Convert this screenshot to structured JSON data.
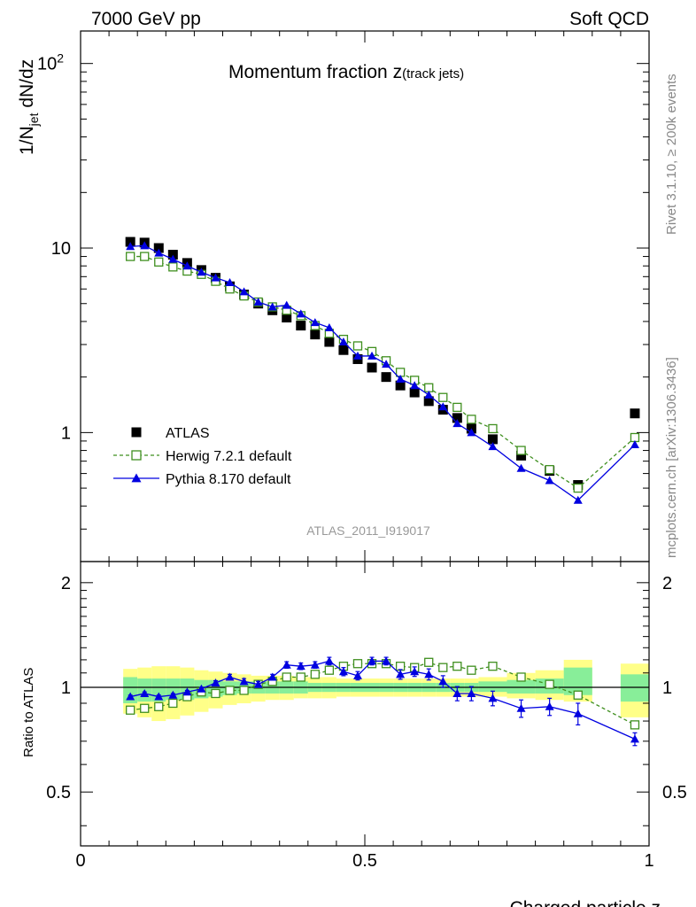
{
  "header": {
    "left": "7000 GeV pp",
    "right": "Soft QCD"
  },
  "side_labels": {
    "top": "Rivet 3.1.10, ≥ 200k events",
    "bottom": "mcplots.cern.ch [arXiv:1306.3436]"
  },
  "chart_data": {
    "type": "scatter",
    "title_main": "Momentum fraction ",
    "title_var": "z",
    "title_sub": "(track jets)",
    "ylabel_pre": "1/N",
    "ylabel_sub": "jet",
    "ylabel_post": " dN/dz",
    "xlabel": "Charged particle z",
    "ratio_ylabel": "Ratio to ATLAS",
    "analysis_id": "ATLAS_2011_I919017",
    "xlim": [
      0,
      1
    ],
    "ylim": [
      0.2,
      150
    ],
    "ratio_ylim": [
      0.35,
      2.3
    ],
    "x_ticks": [
      {
        "v": 0,
        "l": "0"
      },
      {
        "v": 0.5,
        "l": "0.5"
      },
      {
        "v": 1,
        "l": "1"
      }
    ],
    "y_ticks": [
      {
        "v": 1,
        "l": "1"
      },
      {
        "v": 10,
        "l": "10"
      },
      {
        "v": 100,
        "l": "10",
        "sup": "2"
      }
    ],
    "ratio_ticks": [
      {
        "v": 0.5,
        "l": "0.5"
      },
      {
        "v": 1,
        "l": "1"
      },
      {
        "v": 2,
        "l": "2"
      }
    ],
    "x": [
      0.0875,
      0.1125,
      0.1375,
      0.1625,
      0.1875,
      0.2125,
      0.2375,
      0.2625,
      0.2875,
      0.3125,
      0.3375,
      0.3625,
      0.3875,
      0.4125,
      0.4375,
      0.4625,
      0.4875,
      0.5125,
      0.5375,
      0.5625,
      0.5875,
      0.6125,
      0.6375,
      0.6625,
      0.6875,
      0.725,
      0.775,
      0.825,
      0.875,
      0.975
    ],
    "legend": [
      {
        "name": "ATLAS",
        "marker": "square-filled",
        "color": "#000000"
      },
      {
        "name": "Herwig 7.2.1 default",
        "marker": "square-open",
        "color": "#3f8f1f",
        "dash": true
      },
      {
        "name": "Pythia 8.170 default",
        "marker": "triangle",
        "color": "#0000e0",
        "dash": false
      }
    ],
    "series": [
      {
        "name": "ATLAS",
        "values": [
          10.8,
          10.7,
          10.0,
          9.2,
          8.3,
          7.6,
          6.9,
          6.2,
          5.6,
          5.0,
          4.6,
          4.2,
          3.8,
          3.4,
          3.1,
          2.8,
          2.5,
          2.25,
          2.0,
          1.8,
          1.65,
          1.48,
          1.33,
          1.2,
          1.05,
          0.92,
          0.75,
          0.62,
          0.52,
          1.27
        ]
      },
      {
        "name": "Herwig 7.2.1 default",
        "values": [
          9.0,
          9.0,
          8.4,
          7.9,
          7.5,
          7.2,
          6.6,
          6.0,
          5.5,
          5.1,
          4.8,
          4.6,
          4.3,
          3.8,
          3.45,
          3.2,
          2.95,
          2.75,
          2.45,
          2.12,
          1.92,
          1.75,
          1.55,
          1.37,
          1.18,
          1.05,
          0.8,
          0.63,
          0.5,
          0.94
        ]
      },
      {
        "name": "Pythia 8.170 default",
        "values": [
          10.2,
          10.3,
          9.4,
          8.7,
          8.0,
          7.4,
          6.9,
          6.5,
          5.8,
          5.1,
          4.8,
          4.9,
          4.4,
          3.95,
          3.7,
          3.1,
          2.6,
          2.6,
          2.35,
          1.95,
          1.8,
          1.6,
          1.38,
          1.12,
          1.0,
          0.84,
          0.64,
          0.55,
          0.43,
          0.86
        ]
      }
    ],
    "ratio_series": [
      {
        "name": "Herwig 7.2.1 default",
        "values": [
          0.86,
          0.87,
          0.88,
          0.9,
          0.94,
          0.97,
          0.96,
          0.98,
          0.98,
          1.02,
          1.04,
          1.07,
          1.07,
          1.09,
          1.12,
          1.15,
          1.17,
          1.17,
          1.17,
          1.15,
          1.14,
          1.18,
          1.14,
          1.15,
          1.12,
          1.15,
          1.07,
          1.02,
          0.95,
          0.78
        ]
      },
      {
        "name": "Pythia 8.170 default",
        "values": [
          0.94,
          0.96,
          0.94,
          0.95,
          0.97,
          0.99,
          1.03,
          1.07,
          1.04,
          1.02,
          1.07,
          1.16,
          1.15,
          1.16,
          1.19,
          1.11,
          1.08,
          1.19,
          1.19,
          1.09,
          1.11,
          1.09,
          1.04,
          0.96,
          0.96,
          0.93,
          0.87,
          0.88,
          0.84,
          0.71
        ]
      }
    ],
    "ratio_errors": [
      0.01,
      0.01,
      0.01,
      0.01,
      0.01,
      0.01,
      0.015,
      0.02,
      0.02,
      0.02,
      0.02,
      0.025,
      0.025,
      0.025,
      0.03,
      0.03,
      0.03,
      0.03,
      0.03,
      0.035,
      0.035,
      0.04,
      0.04,
      0.045,
      0.045,
      0.045,
      0.05,
      0.05,
      0.06,
      0.03
    ],
    "bands": [
      {
        "x0": 0.075,
        "x1": 0.1,
        "g0": 0.9,
        "g1": 1.07,
        "y0": 0.84,
        "y1": 1.13
      },
      {
        "x0": 0.1,
        "x1": 0.125,
        "g0": 0.91,
        "g1": 1.06,
        "y0": 0.82,
        "y1": 1.14
      },
      {
        "x0": 0.125,
        "x1": 0.15,
        "g0": 0.91,
        "g1": 1.06,
        "y0": 0.8,
        "y1": 1.15
      },
      {
        "x0": 0.15,
        "x1": 0.175,
        "g0": 0.92,
        "g1": 1.06,
        "y0": 0.81,
        "y1": 1.15
      },
      {
        "x0": 0.175,
        "x1": 0.2,
        "g0": 0.92,
        "g1": 1.06,
        "y0": 0.83,
        "y1": 1.14
      },
      {
        "x0": 0.2,
        "x1": 0.225,
        "g0": 0.93,
        "g1": 1.05,
        "y0": 0.85,
        "y1": 1.12
      },
      {
        "x0": 0.225,
        "x1": 0.25,
        "g0": 0.94,
        "g1": 1.05,
        "y0": 0.87,
        "y1": 1.11
      },
      {
        "x0": 0.25,
        "x1": 0.275,
        "g0": 0.95,
        "g1": 1.04,
        "y0": 0.89,
        "y1": 1.1
      },
      {
        "x0": 0.275,
        "x1": 0.3,
        "g0": 0.96,
        "g1": 1.04,
        "y0": 0.9,
        "y1": 1.09
      },
      {
        "x0": 0.3,
        "x1": 0.325,
        "g0": 0.96,
        "g1": 1.04,
        "y0": 0.91,
        "y1": 1.08
      },
      {
        "x0": 0.325,
        "x1": 0.35,
        "g0": 0.96,
        "g1": 1.04,
        "y0": 0.92,
        "y1": 1.08
      },
      {
        "x0": 0.35,
        "x1": 0.375,
        "g0": 0.96,
        "g1": 1.04,
        "y0": 0.92,
        "y1": 1.08
      },
      {
        "x0": 0.375,
        "x1": 0.4,
        "g0": 0.96,
        "g1": 1.04,
        "y0": 0.93,
        "y1": 1.07
      },
      {
        "x0": 0.4,
        "x1": 0.425,
        "g0": 0.97,
        "g1": 1.03,
        "y0": 0.93,
        "y1": 1.07
      },
      {
        "x0": 0.425,
        "x1": 0.45,
        "g0": 0.97,
        "g1": 1.03,
        "y0": 0.93,
        "y1": 1.07
      },
      {
        "x0": 0.45,
        "x1": 0.475,
        "g0": 0.97,
        "g1": 1.03,
        "y0": 0.94,
        "y1": 1.06
      },
      {
        "x0": 0.475,
        "x1": 0.5,
        "g0": 0.97,
        "g1": 1.03,
        "y0": 0.94,
        "y1": 1.06
      },
      {
        "x0": 0.5,
        "x1": 0.525,
        "g0": 0.97,
        "g1": 1.03,
        "y0": 0.94,
        "y1": 1.06
      },
      {
        "x0": 0.525,
        "x1": 0.55,
        "g0": 0.97,
        "g1": 1.03,
        "y0": 0.94,
        "y1": 1.06
      },
      {
        "x0": 0.55,
        "x1": 0.575,
        "g0": 0.97,
        "g1": 1.03,
        "y0": 0.94,
        "y1": 1.06
      },
      {
        "x0": 0.575,
        "x1": 0.6,
        "g0": 0.97,
        "g1": 1.03,
        "y0": 0.94,
        "y1": 1.06
      },
      {
        "x0": 0.6,
        "x1": 0.625,
        "g0": 0.97,
        "g1": 1.03,
        "y0": 0.94,
        "y1": 1.06
      },
      {
        "x0": 0.625,
        "x1": 0.65,
        "g0": 0.97,
        "g1": 1.03,
        "y0": 0.94,
        "y1": 1.06
      },
      {
        "x0": 0.65,
        "x1": 0.675,
        "g0": 0.97,
        "g1": 1.03,
        "y0": 0.94,
        "y1": 1.06
      },
      {
        "x0": 0.675,
        "x1": 0.7,
        "g0": 0.97,
        "g1": 1.03,
        "y0": 0.94,
        "y1": 1.06
      },
      {
        "x0": 0.7,
        "x1": 0.75,
        "g0": 0.97,
        "g1": 1.04,
        "y0": 0.94,
        "y1": 1.07
      },
      {
        "x0": 0.75,
        "x1": 0.8,
        "g0": 0.96,
        "g1": 1.05,
        "y0": 0.93,
        "y1": 1.1
      },
      {
        "x0": 0.8,
        "x1": 0.85,
        "g0": 0.96,
        "g1": 1.06,
        "y0": 0.92,
        "y1": 1.12
      },
      {
        "x0": 0.85,
        "x1": 0.9,
        "g0": 0.95,
        "g1": 1.14,
        "y0": 0.91,
        "y1": 1.2
      },
      {
        "x0": 0.95,
        "x1": 1.0,
        "g0": 0.91,
        "g1": 1.09,
        "y0": 0.82,
        "y1": 1.17
      }
    ]
  }
}
